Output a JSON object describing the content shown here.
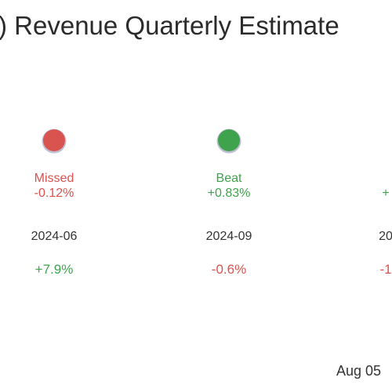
{
  "chart_data": {
    "type": "scatter",
    "title": "A) Revenue Quarterly Estimate",
    "quarters": [
      {
        "period": "2024-06",
        "result": "Missed",
        "surprise": "-0.12%",
        "change": "+7.9%",
        "status": "missed",
        "change_dir": "up"
      },
      {
        "period": "2024-09",
        "result": "Beat",
        "surprise": "+0.83%",
        "change": "-0.6%",
        "status": "beat",
        "change_dir": "down"
      },
      {
        "period": "20",
        "result": "",
        "surprise": "+",
        "change": "-1",
        "status": "beat",
        "change_dir": "down"
      }
    ],
    "grid": false
  },
  "footer": {
    "date": "Aug 05"
  },
  "colors": {
    "missed": "#d9534f",
    "beat": "#3fa34d",
    "positive": "#3fa34d",
    "negative": "#d9534f",
    "text": "#333333",
    "marker_ring": "#8a8ab0"
  }
}
